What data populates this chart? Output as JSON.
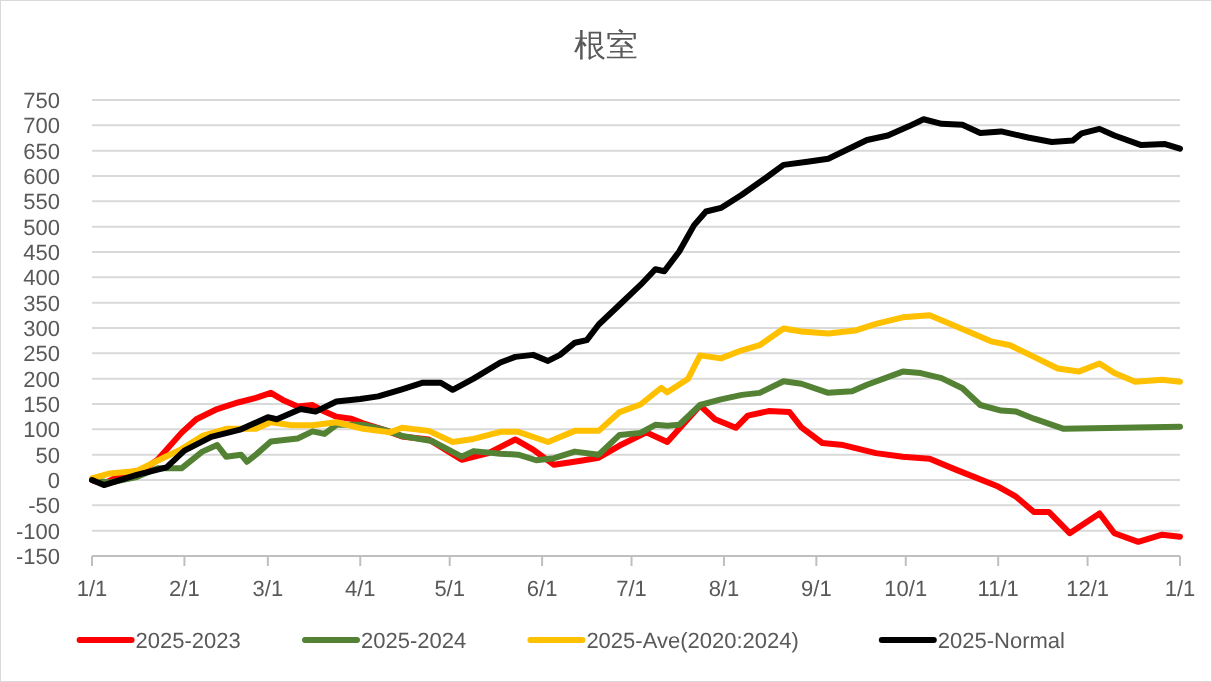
{
  "chart_data": {
    "type": "line",
    "title": "根室",
    "xlim": [
      "2025-01-01",
      "2026-01-01"
    ],
    "ylim": [
      -150,
      750
    ],
    "xticks": [
      {
        "value": "2025-01-01",
        "label": "1/1"
      },
      {
        "value": "2025-02-01",
        "label": "2/1"
      },
      {
        "value": "2025-03-01",
        "label": "3/1"
      },
      {
        "value": "2025-04-01",
        "label": "4/1"
      },
      {
        "value": "2025-05-01",
        "label": "5/1"
      },
      {
        "value": "2025-06-01",
        "label": "6/1"
      },
      {
        "value": "2025-07-01",
        "label": "7/1"
      },
      {
        "value": "2025-08-01",
        "label": "8/1"
      },
      {
        "value": "2025-09-01",
        "label": "9/1"
      },
      {
        "value": "2025-10-01",
        "label": "10/1"
      },
      {
        "value": "2025-11-01",
        "label": "11/1"
      },
      {
        "value": "2025-12-01",
        "label": "12/1"
      },
      {
        "value": "2026-01-01",
        "label": "1/1"
      }
    ],
    "yticks": [
      -150,
      -100,
      -50,
      0,
      50,
      100,
      150,
      200,
      250,
      300,
      350,
      400,
      450,
      500,
      550,
      600,
      650,
      700,
      750
    ],
    "grid": "y",
    "legend": "bottom",
    "series": [
      {
        "name": "2025-2023",
        "color": "#ff0000",
        "x": [
          "2025-01-01",
          "2025-01-05",
          "2025-01-12",
          "2025-01-18",
          "2025-01-23",
          "2025-01-31",
          "2025-02-05",
          "2025-02-12",
          "2025-02-19",
          "2025-02-25",
          "2025-03-02",
          "2025-03-06",
          "2025-03-11",
          "2025-03-16",
          "2025-03-20",
          "2025-03-24",
          "2025-03-29",
          "2025-04-02",
          "2025-04-09",
          "2025-04-15",
          "2025-04-24",
          "2025-05-05",
          "2025-05-14",
          "2025-05-23",
          "2025-05-29",
          "2025-06-05",
          "2025-06-14",
          "2025-06-20",
          "2025-06-27",
          "2025-07-06",
          "2025-07-13",
          "2025-07-24",
          "2025-07-29",
          "2025-08-05",
          "2025-08-09",
          "2025-08-16",
          "2025-08-23",
          "2025-08-27",
          "2025-09-03",
          "2025-09-10",
          "2025-09-21",
          "2025-09-30",
          "2025-10-09",
          "2025-10-18",
          "2025-11-01",
          "2025-11-07",
          "2025-11-13",
          "2025-11-18",
          "2025-11-25",
          "2025-12-05",
          "2025-12-10",
          "2025-12-18",
          "2025-12-26",
          "2026-01-01"
        ],
        "values": [
          0,
          -7,
          13,
          20,
          40,
          93,
          120,
          140,
          153,
          162,
          172,
          158,
          145,
          148,
          135,
          125,
          121,
          112,
          99,
          86,
          80,
          40,
          53,
          80,
          60,
          30,
          38,
          44,
          68,
          94,
          75,
          147,
          120,
          103,
          127,
          136,
          134,
          104,
          73,
          69,
          53,
          46,
          42,
          20,
          -13,
          -33,
          -63,
          -63,
          -105,
          -66,
          -105,
          -122,
          -108,
          -112
        ]
      },
      {
        "name": "2025-2024",
        "color": "#548235",
        "x": [
          "2025-01-01",
          "2025-01-07",
          "2025-01-16",
          "2025-01-23",
          "2025-01-31",
          "2025-02-07",
          "2025-02-12",
          "2025-02-15",
          "2025-02-20",
          "2025-02-22",
          "2025-02-25",
          "2025-03-02",
          "2025-03-11",
          "2025-03-16",
          "2025-03-20",
          "2025-03-24",
          "2025-04-02",
          "2025-04-09",
          "2025-04-15",
          "2025-04-25",
          "2025-05-05",
          "2025-05-09",
          "2025-05-18",
          "2025-05-24",
          "2025-05-30",
          "2025-06-05",
          "2025-06-12",
          "2025-06-20",
          "2025-06-27",
          "2025-07-04",
          "2025-07-09",
          "2025-07-13",
          "2025-07-17",
          "2025-07-24",
          "2025-07-31",
          "2025-08-07",
          "2025-08-13",
          "2025-08-21",
          "2025-08-27",
          "2025-09-05",
          "2025-09-13",
          "2025-09-18",
          "2025-09-30",
          "2025-10-06",
          "2025-10-13",
          "2025-10-20",
          "2025-10-26",
          "2025-11-02",
          "2025-11-07",
          "2025-11-13",
          "2025-11-23",
          "2026-01-01"
        ],
        "values": [
          0,
          -5,
          6,
          23,
          23,
          56,
          69,
          46,
          50,
          36,
          50,
          76,
          82,
          96,
          91,
          109,
          109,
          99,
          87,
          77,
          46,
          57,
          52,
          50,
          39,
          43,
          56,
          50,
          89,
          93,
          109,
          107,
          109,
          148,
          159,
          168,
          172,
          195,
          190,
          172,
          175,
          188,
          214,
          211,
          201,
          181,
          148,
          137,
          135,
          121,
          101,
          105
        ]
      },
      {
        "name": "2025-Ave(2020:2024)",
        "color": "#ffc000",
        "x": [
          "2025-01-01",
          "2025-01-07",
          "2025-01-16",
          "2025-01-25",
          "2025-01-31",
          "2025-02-07",
          "2025-02-15",
          "2025-02-25",
          "2025-03-02",
          "2025-03-09",
          "2025-03-16",
          "2025-03-24",
          "2025-04-02",
          "2025-04-11",
          "2025-04-15",
          "2025-04-24",
          "2025-05-02",
          "2025-05-09",
          "2025-05-18",
          "2025-05-24",
          "2025-06-03",
          "2025-06-12",
          "2025-06-20",
          "2025-06-27",
          "2025-07-04",
          "2025-07-11",
          "2025-07-13",
          "2025-07-20",
          "2025-07-24",
          "2025-07-31",
          "2025-08-07",
          "2025-08-13",
          "2025-08-21",
          "2025-08-27",
          "2025-09-05",
          "2025-09-14",
          "2025-09-21",
          "2025-09-30",
          "2025-10-09",
          "2025-10-18",
          "2025-10-30",
          "2025-11-05",
          "2025-11-12",
          "2025-11-21",
          "2025-11-28",
          "2025-12-05",
          "2025-12-10",
          "2025-12-17",
          "2025-12-26",
          "2026-01-01"
        ],
        "values": [
          3,
          13,
          18,
          44,
          61,
          87,
          101,
          101,
          114,
          108,
          108,
          114,
          101,
          94,
          103,
          97,
          75,
          81,
          95,
          95,
          75,
          97,
          97,
          134,
          149,
          182,
          173,
          200,
          246,
          240,
          256,
          266,
          299,
          293,
          289,
          295,
          308,
          321,
          325,
          303,
          273,
          266,
          246,
          220,
          214,
          230,
          211,
          194,
          198,
          194
        ]
      },
      {
        "name": "2025-Normal",
        "color": "#000000",
        "x": [
          "2025-01-01",
          "2025-01-05",
          "2025-01-16",
          "2025-01-26",
          "2025-02-01",
          "2025-02-10",
          "2025-02-20",
          "2025-03-01",
          "2025-03-04",
          "2025-03-12",
          "2025-03-17",
          "2025-03-24",
          "2025-04-01",
          "2025-04-07",
          "2025-04-15",
          "2025-04-22",
          "2025-04-28",
          "2025-05-02",
          "2025-05-09",
          "2025-05-18",
          "2025-05-23",
          "2025-05-29",
          "2025-06-03",
          "2025-06-07",
          "2025-06-12",
          "2025-06-16",
          "2025-06-20",
          "2025-06-27",
          "2025-07-04",
          "2025-07-09",
          "2025-07-12",
          "2025-07-17",
          "2025-07-22",
          "2025-07-26",
          "2025-07-31",
          "2025-08-07",
          "2025-08-15",
          "2025-08-21",
          "2025-08-29",
          "2025-09-05",
          "2025-09-18",
          "2025-09-25",
          "2025-10-02",
          "2025-10-07",
          "2025-10-13",
          "2025-10-20",
          "2025-10-26",
          "2025-11-02",
          "2025-11-11",
          "2025-11-19",
          "2025-11-26",
          "2025-11-29",
          "2025-12-05",
          "2025-12-10",
          "2025-12-19",
          "2025-12-27",
          "2026-01-01"
        ],
        "values": [
          0,
          -10,
          10,
          25,
          58,
          85,
          100,
          124,
          120,
          140,
          135,
          155,
          160,
          165,
          179,
          192,
          192,
          178,
          200,
          232,
          243,
          247,
          235,
          247,
          271,
          276,
          307,
          346,
          385,
          416,
          412,
          451,
          503,
          530,
          537,
          563,
          596,
          622,
          628,
          634,
          671,
          680,
          698,
          712,
          703,
          701,
          685,
          688,
          676,
          667,
          670,
          684,
          693,
          680,
          661,
          663,
          654
        ]
      }
    ]
  }
}
